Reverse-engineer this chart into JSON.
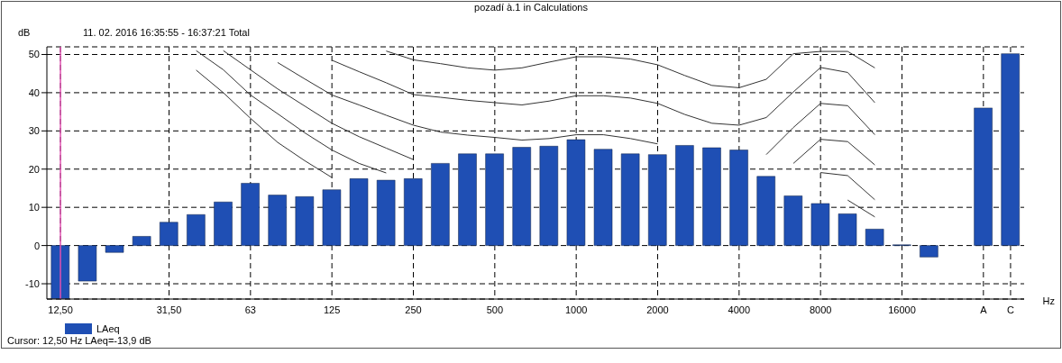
{
  "chart_data": {
    "type": "bar",
    "title": "pozadí à.1 in Calculations",
    "subtitle": "11. 02. 2016 16:35:55 - 16:37:21 Total",
    "xlabel": "Hz",
    "ylabel": "dB",
    "annotations": [
      "Cursor: 12,50 Hz  LAeq=-13,9 dB"
    ],
    "categories": [
      "12,50",
      null,
      null,
      null,
      "31,50",
      null,
      null,
      "63",
      null,
      null,
      "125",
      null,
      null,
      "250",
      null,
      null,
      "500",
      null,
      null,
      "1000",
      null,
      null,
      "2000",
      null,
      null,
      "4000",
      null,
      null,
      "8000",
      null,
      null,
      "16000",
      null,
      null,
      "A",
      "C"
    ],
    "series": [
      {
        "name": "LAeq",
        "color": "#1f4fb4",
        "values": [
          -13.9,
          -9.3,
          -1.8,
          2.4,
          6.1,
          8.1,
          11.4,
          16.3,
          13.2,
          12.8,
          14.6,
          17.5,
          17.1,
          17.5,
          21.5,
          24,
          24,
          25.7,
          26,
          27.7,
          25.2,
          24,
          23.8,
          26.2,
          25.6,
          25,
          18.1,
          13,
          11,
          8.3,
          4.3,
          0.2,
          -3,
          null,
          36,
          50.2
        ]
      },
      {
        "type": "line",
        "color": "#333333",
        "values": [
          null,
          null,
          null,
          null,
          null,
          45.9,
          40,
          33.3,
          27,
          22.2,
          17.8,
          null,
          null,
          null,
          null,
          null,
          null,
          null,
          null,
          null,
          null,
          null,
          null,
          null,
          null,
          null,
          null,
          null,
          null,
          11.9,
          7.5,
          null,
          null,
          null,
          null,
          null
        ]
      },
      {
        "type": "line",
        "color": "#333333",
        "values": [
          null,
          null,
          null,
          null,
          null,
          51,
          46,
          39.4,
          34.5,
          29.5,
          25,
          21.5,
          19,
          null,
          null,
          null,
          null,
          null,
          null,
          null,
          null,
          null,
          null,
          null,
          null,
          null,
          null,
          null,
          19.1,
          18.3,
          12,
          null,
          null,
          null,
          null,
          null
        ]
      },
      {
        "type": "line",
        "color": "#333333",
        "values": [
          null,
          null,
          null,
          null,
          null,
          null,
          51,
          46,
          41,
          36.5,
          32,
          28.5,
          25.5,
          22.5,
          null,
          null,
          null,
          null,
          null,
          null,
          null,
          null,
          null,
          null,
          null,
          null,
          null,
          21.5,
          27.8,
          27.2,
          21.1,
          null,
          null,
          null,
          null,
          null
        ]
      },
      {
        "type": "line",
        "color": "#333333",
        "values": [
          null,
          null,
          null,
          null,
          null,
          null,
          null,
          null,
          47.9,
          43.6,
          39.4,
          36.8,
          34.1,
          31.5,
          29.7,
          28.9,
          28.3,
          27.6,
          28,
          29,
          29,
          28,
          26.6,
          null,
          null,
          null,
          23.8,
          30.9,
          37.2,
          36.6,
          29,
          null,
          null,
          null,
          null,
          null
        ]
      },
      {
        "type": "line",
        "color": "#333333",
        "values": [
          null,
          null,
          null,
          null,
          null,
          null,
          null,
          null,
          null,
          null,
          48.5,
          45.5,
          42.6,
          39.5,
          38.8,
          38,
          37.4,
          36.8,
          37.8,
          39.2,
          39.2,
          38.6,
          37.2,
          34.3,
          32,
          31.5,
          33.5,
          40.2,
          46.6,
          45.3,
          37.4,
          null,
          null,
          null,
          null,
          null
        ]
      },
      {
        "type": "line",
        "color": "#333333",
        "values": [
          null,
          null,
          null,
          null,
          null,
          null,
          null,
          null,
          null,
          null,
          null,
          null,
          50.9,
          48.6,
          47.6,
          46.5,
          45.9,
          46.5,
          48,
          49.4,
          49.4,
          48.8,
          47.3,
          44.5,
          41.9,
          41.3,
          43.5,
          50.2,
          50.8,
          50.8,
          46.5,
          null,
          null,
          null,
          null,
          null
        ]
      }
    ],
    "ylim": [
      -14,
      52
    ],
    "yticks": [
      -10,
      0,
      10,
      20,
      30,
      40,
      50
    ],
    "ref_lines": [
      {
        "axis": "x",
        "value": "12,50",
        "color": "#e050b0"
      }
    ],
    "grid": true,
    "legend": "bottom left",
    "marker": "none",
    "line_style": "solid"
  }
}
